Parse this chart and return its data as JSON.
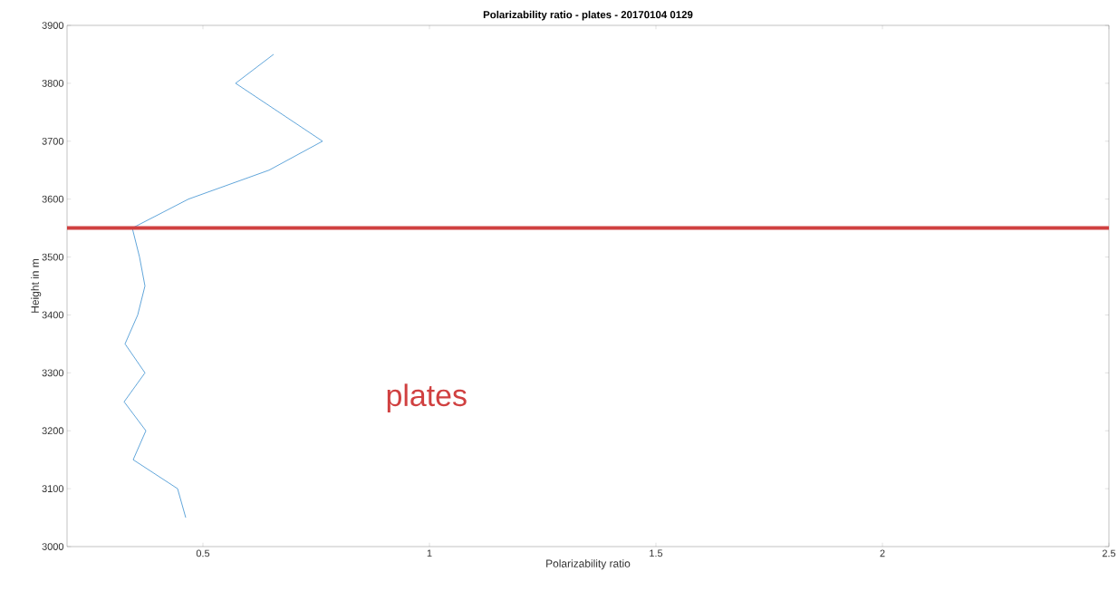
{
  "chart_data": {
    "type": "line",
    "title": "Polarizability ratio - plates - 20170104 0129",
    "xlabel": "Polarizability ratio",
    "ylabel": "Height in m",
    "series": [
      {
        "color": "#3a8fd0",
        "x": [
          0.656,
          0.572,
          0.764,
          0.646,
          0.468,
          0.344,
          0.36,
          0.372,
          0.356,
          0.328,
          0.372,
          0.326,
          0.374,
          0.346,
          0.444,
          0.462
        ],
        "values": [
          3850,
          3800,
          3700,
          3650,
          3600,
          3550,
          3500,
          3450,
          3400,
          3350,
          3300,
          3250,
          3200,
          3150,
          3100,
          3050
        ]
      }
    ],
    "xlim": [
      0.2,
      2.5
    ],
    "ylim": [
      3000,
      3900
    ],
    "xticks": [
      0.5,
      1,
      1.5,
      2,
      2.5
    ],
    "yticks": [
      3000,
      3100,
      3200,
      3300,
      3400,
      3500,
      3600,
      3700,
      3800,
      3900
    ],
    "ref_lines": [
      {
        "axis": "y",
        "value": 3550,
        "color": "#d04040"
      }
    ],
    "annotations": [
      "plates"
    ]
  }
}
